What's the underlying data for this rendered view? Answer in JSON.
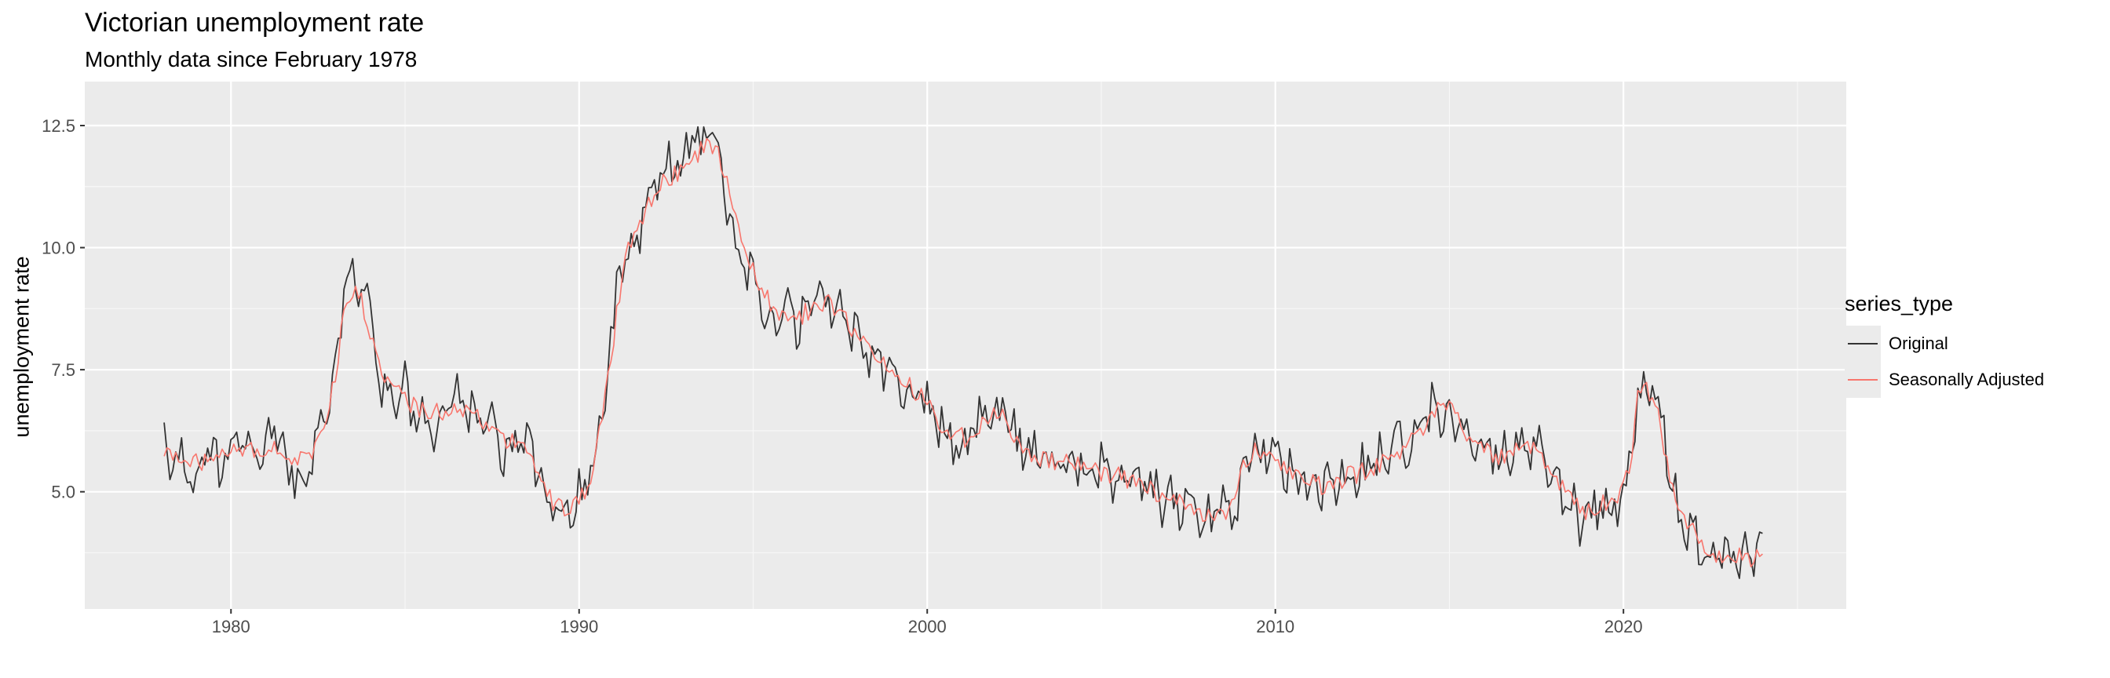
{
  "title": "Victorian unemployment rate",
  "subtitle": "Monthly data since February 1978",
  "legend": {
    "title": "series_type",
    "items": [
      {
        "label": "Original",
        "color": "#333333"
      },
      {
        "label": "Seasonally Adjusted",
        "color": "#F8766D"
      }
    ]
  },
  "chart_data": {
    "type": "line",
    "title": "Victorian unemployment rate",
    "subtitle": "Monthly data since February 1978",
    "xlabel": "",
    "ylabel": "unemployment rate",
    "xlim": [
      1975.8,
      2026.4
    ],
    "ylim": [
      2.6,
      13.4
    ],
    "x_ticks": [
      1980,
      1990,
      2000,
      2010,
      2020
    ],
    "y_ticks": [
      5.0,
      7.5,
      10.0,
      12.5
    ],
    "y_tick_labels": [
      "5.0",
      "7.5",
      "10.0",
      "12.5"
    ],
    "grid": true,
    "legend_position": "right",
    "x_start": "1978-02",
    "x_step": "1 month",
    "series": [
      {
        "name": "Original",
        "color": "#333333",
        "anchors": [
          [
            1978.08,
            6.5
          ],
          [
            1978.3,
            5.5
          ],
          [
            1978.6,
            5.7
          ],
          [
            1979.0,
            5.0
          ],
          [
            1979.2,
            6.2
          ],
          [
            1979.7,
            5.4
          ],
          [
            1980.1,
            6.0
          ],
          [
            1980.6,
            5.8
          ],
          [
            1981.0,
            5.9
          ],
          [
            1981.3,
            6.3
          ],
          [
            1981.6,
            5.5
          ],
          [
            1982.0,
            5.3
          ],
          [
            1982.3,
            5.6
          ],
          [
            1982.7,
            6.4
          ],
          [
            1983.0,
            7.6
          ],
          [
            1983.3,
            9.4
          ],
          [
            1983.6,
            9.1
          ],
          [
            1983.8,
            9.5
          ],
          [
            1984.0,
            8.4
          ],
          [
            1984.3,
            7.2
          ],
          [
            1984.6,
            6.8
          ],
          [
            1984.9,
            7.5
          ],
          [
            1985.2,
            6.6
          ],
          [
            1985.5,
            6.5
          ],
          [
            1985.8,
            6.3
          ],
          [
            1986.2,
            6.7
          ],
          [
            1986.6,
            6.8
          ],
          [
            1987.0,
            6.6
          ],
          [
            1987.4,
            6.3
          ],
          [
            1987.8,
            5.9
          ],
          [
            1988.2,
            6.0
          ],
          [
            1988.6,
            6.0
          ],
          [
            1989.0,
            5.0
          ],
          [
            1989.4,
            4.6
          ],
          [
            1989.8,
            4.7
          ],
          [
            1990.1,
            4.9
          ],
          [
            1990.4,
            5.6
          ],
          [
            1990.7,
            7.0
          ],
          [
            1991.0,
            8.5
          ],
          [
            1991.3,
            10.0
          ],
          [
            1991.6,
            10.2
          ],
          [
            1992.0,
            11.0
          ],
          [
            1992.4,
            11.6
          ],
          [
            1992.8,
            11.6
          ],
          [
            1993.2,
            12.2
          ],
          [
            1993.6,
            12.0
          ],
          [
            1993.9,
            12.6
          ],
          [
            1994.2,
            11.2
          ],
          [
            1994.6,
            9.8
          ],
          [
            1995.0,
            9.4
          ],
          [
            1995.4,
            8.8
          ],
          [
            1995.8,
            8.6
          ],
          [
            1996.2,
            8.5
          ],
          [
            1996.6,
            8.6
          ],
          [
            1997.0,
            9.0
          ],
          [
            1997.4,
            8.8
          ],
          [
            1997.8,
            8.4
          ],
          [
            1998.2,
            8.0
          ],
          [
            1998.6,
            7.8
          ],
          [
            1999.0,
            7.4
          ],
          [
            1999.4,
            7.2
          ],
          [
            1999.8,
            6.9
          ],
          [
            2000.2,
            6.6
          ],
          [
            2000.6,
            6.1
          ],
          [
            2001.0,
            6.0
          ],
          [
            2001.4,
            6.3
          ],
          [
            2001.8,
            6.5
          ],
          [
            2002.2,
            6.7
          ],
          [
            2002.6,
            6.0
          ],
          [
            2003.0,
            5.8
          ],
          [
            2003.5,
            5.6
          ],
          [
            2004.0,
            5.5
          ],
          [
            2004.5,
            5.5
          ],
          [
            2005.0,
            5.4
          ],
          [
            2005.5,
            5.3
          ],
          [
            2006.0,
            5.2
          ],
          [
            2006.5,
            5.0
          ],
          [
            2007.0,
            4.8
          ],
          [
            2007.5,
            4.6
          ],
          [
            2008.0,
            4.5
          ],
          [
            2008.5,
            4.5
          ],
          [
            2008.9,
            4.6
          ],
          [
            2009.3,
            5.8
          ],
          [
            2009.7,
            5.8
          ],
          [
            2010.1,
            5.6
          ],
          [
            2010.5,
            5.4
          ],
          [
            2010.9,
            5.2
          ],
          [
            2011.3,
            5.0
          ],
          [
            2011.7,
            5.1
          ],
          [
            2012.1,
            5.3
          ],
          [
            2012.5,
            5.4
          ],
          [
            2012.9,
            5.6
          ],
          [
            2013.3,
            5.8
          ],
          [
            2013.7,
            5.9
          ],
          [
            2014.1,
            6.2
          ],
          [
            2014.5,
            6.7
          ],
          [
            2014.9,
            6.6
          ],
          [
            2015.3,
            6.4
          ],
          [
            2015.7,
            6.1
          ],
          [
            2016.1,
            5.8
          ],
          [
            2016.5,
            5.7
          ],
          [
            2016.9,
            5.9
          ],
          [
            2017.3,
            6.0
          ],
          [
            2017.7,
            5.8
          ],
          [
            2018.0,
            5.4
          ],
          [
            2018.4,
            4.8
          ],
          [
            2018.8,
            4.5
          ],
          [
            2019.2,
            4.7
          ],
          [
            2019.6,
            4.8
          ],
          [
            2019.9,
            4.9
          ],
          [
            2020.2,
            5.6
          ],
          [
            2020.4,
            6.9
          ],
          [
            2020.6,
            7.2
          ],
          [
            2020.9,
            6.9
          ],
          [
            2021.2,
            6.1
          ],
          [
            2021.4,
            4.9
          ],
          [
            2021.7,
            4.4
          ],
          [
            2022.0,
            4.2
          ],
          [
            2022.3,
            3.8
          ],
          [
            2022.6,
            3.4
          ],
          [
            2022.9,
            3.8
          ],
          [
            2023.3,
            3.7
          ],
          [
            2023.7,
            3.7
          ],
          [
            2024.0,
            4.1
          ]
        ]
      },
      {
        "name": "Seasonally Adjusted",
        "color": "#F8766D",
        "anchors": [
          [
            1978.08,
            5.9
          ],
          [
            1978.6,
            5.6
          ],
          [
            1979.2,
            5.6
          ],
          [
            1979.7,
            5.7
          ],
          [
            1980.2,
            5.8
          ],
          [
            1980.8,
            5.9
          ],
          [
            1981.3,
            5.9
          ],
          [
            1981.8,
            5.6
          ],
          [
            1982.3,
            5.7
          ],
          [
            1982.7,
            6.3
          ],
          [
            1983.0,
            7.4
          ],
          [
            1983.3,
            9.0
          ],
          [
            1983.6,
            9.2
          ],
          [
            1983.9,
            8.6
          ],
          [
            1984.3,
            7.4
          ],
          [
            1984.8,
            7.1
          ],
          [
            1985.3,
            6.7
          ],
          [
            1985.8,
            6.6
          ],
          [
            1986.3,
            6.7
          ],
          [
            1986.8,
            6.6
          ],
          [
            1987.3,
            6.4
          ],
          [
            1987.8,
            6.0
          ],
          [
            1988.3,
            6.0
          ],
          [
            1988.8,
            5.4
          ],
          [
            1989.2,
            4.8
          ],
          [
            1989.6,
            4.7
          ],
          [
            1990.0,
            4.8
          ],
          [
            1990.4,
            5.3
          ],
          [
            1990.7,
            6.8
          ],
          [
            1991.0,
            8.2
          ],
          [
            1991.3,
            9.8
          ],
          [
            1991.7,
            10.3
          ],
          [
            1992.0,
            10.9
          ],
          [
            1992.5,
            11.4
          ],
          [
            1993.0,
            11.6
          ],
          [
            1993.5,
            12.0
          ],
          [
            1993.9,
            12.1
          ],
          [
            1994.3,
            11.2
          ],
          [
            1994.7,
            10.0
          ],
          [
            1995.1,
            9.4
          ],
          [
            1995.6,
            8.7
          ],
          [
            1996.1,
            8.5
          ],
          [
            1996.6,
            8.7
          ],
          [
            1997.1,
            8.9
          ],
          [
            1997.6,
            8.6
          ],
          [
            1998.1,
            8.1
          ],
          [
            1998.6,
            7.7
          ],
          [
            1999.1,
            7.3
          ],
          [
            1999.6,
            7.1
          ],
          [
            2000.1,
            6.7
          ],
          [
            2000.6,
            6.2
          ],
          [
            2001.1,
            6.1
          ],
          [
            2001.6,
            6.4
          ],
          [
            2002.1,
            6.6
          ],
          [
            2002.6,
            6.0
          ],
          [
            2003.2,
            5.7
          ],
          [
            2003.8,
            5.6
          ],
          [
            2004.4,
            5.5
          ],
          [
            2005.0,
            5.4
          ],
          [
            2005.6,
            5.3
          ],
          [
            2006.2,
            5.1
          ],
          [
            2006.8,
            4.9
          ],
          [
            2007.4,
            4.7
          ],
          [
            2008.0,
            4.5
          ],
          [
            2008.6,
            4.6
          ],
          [
            2009.1,
            5.5
          ],
          [
            2009.5,
            5.9
          ],
          [
            2010.0,
            5.7
          ],
          [
            2010.5,
            5.4
          ],
          [
            2011.0,
            5.2
          ],
          [
            2011.5,
            5.1
          ],
          [
            2012.0,
            5.3
          ],
          [
            2012.5,
            5.4
          ],
          [
            2013.0,
            5.6
          ],
          [
            2013.5,
            5.8
          ],
          [
            2014.0,
            6.1
          ],
          [
            2014.5,
            6.6
          ],
          [
            2015.0,
            6.7
          ],
          [
            2015.5,
            6.2
          ],
          [
            2016.0,
            5.9
          ],
          [
            2016.5,
            5.7
          ],
          [
            2017.0,
            5.9
          ],
          [
            2017.5,
            5.9
          ],
          [
            2018.0,
            5.4
          ],
          [
            2018.4,
            4.9
          ],
          [
            2018.8,
            4.6
          ],
          [
            2019.2,
            4.7
          ],
          [
            2019.6,
            4.8
          ],
          [
            2019.9,
            4.9
          ],
          [
            2020.2,
            5.5
          ],
          [
            2020.4,
            7.2
          ],
          [
            2020.7,
            7.1
          ],
          [
            2021.0,
            6.6
          ],
          [
            2021.3,
            5.4
          ],
          [
            2021.6,
            4.5
          ],
          [
            2021.9,
            4.3
          ],
          [
            2022.2,
            4.1
          ],
          [
            2022.6,
            3.6
          ],
          [
            2022.9,
            3.7
          ],
          [
            2023.3,
            3.7
          ],
          [
            2023.7,
            3.6
          ],
          [
            2024.0,
            3.9
          ]
        ]
      }
    ]
  }
}
